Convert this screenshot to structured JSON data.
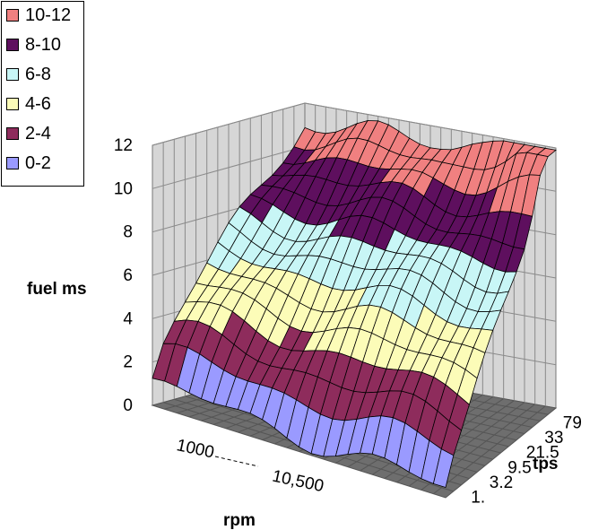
{
  "chart_data": {
    "type": "surface",
    "title": "",
    "zlabel": "fuel ms",
    "xlabel": "rpm",
    "ylabel": "tps",
    "zlim": [
      0,
      12
    ],
    "z_ticks": [
      "0",
      "2",
      "4",
      "6",
      "8",
      "10",
      "12"
    ],
    "rpm_ticks": [
      "1000",
      "10,500"
    ],
    "tps_ticks": [
      "1.",
      "3.2",
      "9.5",
      "21.5",
      "33",
      "79"
    ],
    "grid": true,
    "legend_position": "top-left",
    "bands": [
      {
        "name": "10-12",
        "range": [
          10,
          12
        ],
        "color": "#f08080"
      },
      {
        "name": "8-10",
        "range": [
          8,
          10
        ],
        "color": "#5e0f5e"
      },
      {
        "name": "6-8",
        "range": [
          6,
          8
        ],
        "color": "#c8f6f6"
      },
      {
        "name": "4-6",
        "range": [
          4,
          6
        ],
        "color": "#fcfcb8"
      },
      {
        "name": "2-4",
        "range": [
          2,
          4
        ],
        "color": "#8e2c5c"
      },
      {
        "name": "0-2",
        "range": [
          0,
          2
        ],
        "color": "#9a9aff"
      }
    ]
  }
}
